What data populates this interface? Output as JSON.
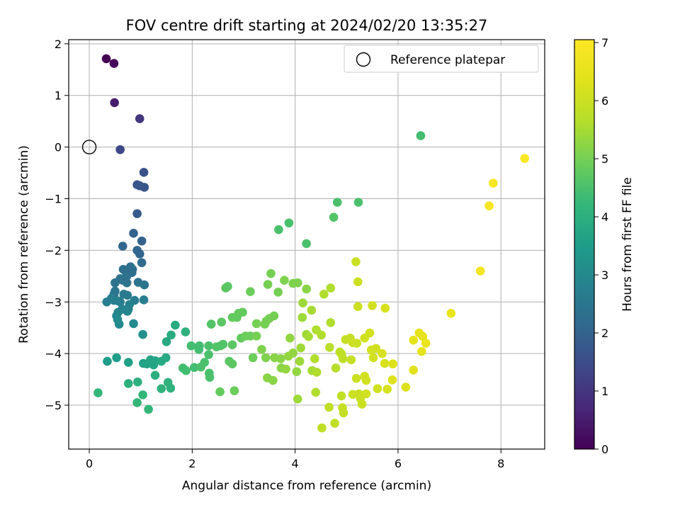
{
  "chart_data": {
    "type": "scatter",
    "title": "FOV centre drift starting at 2024/02/20 13:35:27",
    "xlabel": "Angular distance from reference (arcmin)",
    "ylabel": "Rotation from reference (arcmin)",
    "xlim": [
      -0.4,
      8.85
    ],
    "ylim": [
      -5.85,
      2.08
    ],
    "xticks": [
      0,
      2,
      4,
      6,
      8
    ],
    "yticks": [
      2,
      1,
      0,
      -1,
      -2,
      -3,
      -4,
      -5
    ],
    "xticks_labels": [
      "0",
      "2",
      "4",
      "6",
      "8"
    ],
    "yticks_labels": [
      "2",
      "1",
      "0",
      "−1",
      "−2",
      "−3",
      "−4",
      "−5"
    ],
    "grid": true,
    "legend": {
      "label": "Reference platepar",
      "placement": "top-right"
    },
    "reference_point": {
      "x": 0,
      "y": 0
    },
    "colorbar": {
      "label": "Hours from first FF file",
      "colormap": "viridis",
      "range": [
        0,
        7.05
      ],
      "ticks": [
        0,
        1,
        2,
        3,
        4,
        5,
        6,
        7
      ],
      "ticks_labels": [
        "0",
        "1",
        "2",
        "3",
        "4",
        "5",
        "6",
        "7"
      ]
    },
    "series": [
      {
        "points": [
          [
            0.33,
            1.71,
            0.0
          ],
          [
            0.48,
            1.62,
            0.1
          ],
          [
            0.49,
            0.86,
            0.5
          ],
          [
            0.98,
            0.55,
            1.0
          ],
          [
            0.6,
            -0.05,
            1.4
          ],
          [
            1.06,
            -0.49,
            1.6
          ],
          [
            0.93,
            -0.73,
            1.7
          ],
          [
            0.98,
            -0.75,
            1.7
          ],
          [
            1.07,
            -0.78,
            1.7
          ],
          [
            0.93,
            -1.29,
            1.8
          ],
          [
            0.86,
            -1.67,
            2.0
          ],
          [
            1.02,
            -1.82,
            2.0
          ],
          [
            0.65,
            -1.92,
            2.1
          ],
          [
            0.93,
            -2.0,
            2.1
          ],
          [
            0.98,
            -2.07,
            2.1
          ],
          [
            1.02,
            -2.24,
            2.2
          ],
          [
            0.8,
            -2.32,
            2.3
          ],
          [
            0.66,
            -2.37,
            2.3
          ],
          [
            0.84,
            -2.37,
            2.3
          ],
          [
            0.72,
            -2.43,
            2.3
          ],
          [
            0.83,
            -2.43,
            2.3
          ],
          [
            0.73,
            -2.5,
            2.4
          ],
          [
            0.6,
            -2.55,
            2.4
          ],
          [
            0.65,
            -2.58,
            2.4
          ],
          [
            0.5,
            -2.63,
            2.4
          ],
          [
            0.73,
            -2.63,
            2.4
          ],
          [
            0.95,
            -2.62,
            2.4
          ],
          [
            1.07,
            -2.67,
            2.5
          ],
          [
            0.5,
            -2.79,
            2.5
          ],
          [
            0.48,
            -2.85,
            2.5
          ],
          [
            0.67,
            -2.85,
            2.6
          ],
          [
            0.74,
            -2.87,
            2.6
          ],
          [
            0.43,
            -2.93,
            2.7
          ],
          [
            0.48,
            -2.97,
            2.7
          ],
          [
            0.56,
            -2.98,
            2.7
          ],
          [
            0.88,
            -2.97,
            2.7
          ],
          [
            1.06,
            -2.96,
            2.7
          ],
          [
            0.34,
            -3.0,
            2.7
          ],
          [
            0.6,
            -3.0,
            2.7
          ],
          [
            0.78,
            -3.05,
            2.8
          ],
          [
            0.64,
            -3.14,
            2.8
          ],
          [
            0.76,
            -3.14,
            2.8
          ],
          [
            0.56,
            -3.2,
            2.9
          ],
          [
            0.74,
            -3.18,
            2.9
          ],
          [
            0.53,
            -3.27,
            2.9
          ],
          [
            0.55,
            -3.34,
            3.0
          ],
          [
            0.58,
            -3.43,
            3.0
          ],
          [
            0.86,
            -3.42,
            3.0
          ],
          [
            1.04,
            -3.63,
            3.2
          ],
          [
            0.53,
            -4.08,
            3.5
          ],
          [
            0.35,
            -4.15,
            3.5
          ],
          [
            0.76,
            -4.17,
            3.6
          ],
          [
            1.05,
            -4.19,
            3.6
          ],
          [
            1.19,
            -4.12,
            3.7
          ],
          [
            1.12,
            -4.2,
            3.7
          ],
          [
            1.25,
            -4.22,
            3.7
          ],
          [
            1.28,
            -4.14,
            3.7
          ],
          [
            1.4,
            -4.15,
            3.8
          ],
          [
            1.49,
            -4.08,
            3.8
          ],
          [
            1.5,
            -3.77,
            3.8
          ],
          [
            1.59,
            -3.64,
            3.9
          ],
          [
            1.67,
            -3.45,
            3.9
          ],
          [
            1.87,
            -3.58,
            4.0
          ],
          [
            1.28,
            -4.42,
            4.0
          ],
          [
            0.76,
            -4.58,
            4.0
          ],
          [
            0.94,
            -4.55,
            4.0
          ],
          [
            1.4,
            -4.68,
            4.1
          ],
          [
            1.53,
            -4.56,
            4.1
          ],
          [
            1.58,
            -4.67,
            4.1
          ],
          [
            0.17,
            -4.76,
            4.2
          ],
          [
            1.04,
            -4.8,
            4.2
          ],
          [
            0.93,
            -4.95,
            4.2
          ],
          [
            1.15,
            -5.08,
            4.2
          ],
          [
            1.82,
            -4.28,
            4.4
          ],
          [
            1.88,
            -4.33,
            4.4
          ],
          [
            1.98,
            -3.85,
            4.4
          ],
          [
            2.04,
            -4.27,
            4.4
          ],
          [
            2.14,
            -3.85,
            4.4
          ],
          [
            2.13,
            -3.92,
            4.4
          ],
          [
            2.17,
            -4.26,
            4.5
          ],
          [
            2.24,
            -4.17,
            4.5
          ],
          [
            2.32,
            -3.85,
            4.5
          ],
          [
            2.32,
            -4.02,
            4.5
          ],
          [
            2.33,
            -4.38,
            4.5
          ],
          [
            2.34,
            -4.46,
            4.5
          ],
          [
            2.37,
            -3.43,
            4.6
          ],
          [
            2.47,
            -3.87,
            4.6
          ],
          [
            2.55,
            -3.85,
            4.6
          ],
          [
            2.6,
            -3.82,
            4.6
          ],
          [
            2.57,
            -3.39,
            4.7
          ],
          [
            2.65,
            -2.73,
            4.7
          ],
          [
            2.69,
            -2.7,
            4.7
          ],
          [
            2.72,
            -4.15,
            4.7
          ],
          [
            2.78,
            -4.2,
            4.7
          ],
          [
            2.78,
            -3.83,
            4.7
          ],
          [
            2.78,
            -3.3,
            4.8
          ],
          [
            2.87,
            -3.3,
            4.8
          ],
          [
            2.9,
            -3.22,
            4.8
          ],
          [
            2.98,
            -3.2,
            4.8
          ],
          [
            2.95,
            -3.7,
            4.8
          ],
          [
            3.04,
            -3.66,
            4.9
          ],
          [
            3.13,
            -3.66,
            4.9
          ],
          [
            3.13,
            -2.8,
            4.9
          ],
          [
            3.18,
            -4.08,
            4.9
          ],
          [
            3.25,
            -3.42,
            5.0
          ],
          [
            3.25,
            -3.66,
            5.0
          ],
          [
            3.41,
            -3.43,
            5.0
          ],
          [
            3.44,
            -3.37,
            5.0
          ],
          [
            3.5,
            -3.32,
            5.0
          ],
          [
            3.59,
            -3.27,
            5.0
          ],
          [
            3.47,
            -2.66,
            5.0
          ],
          [
            3.53,
            -2.45,
            5.0
          ],
          [
            3.67,
            -2.81,
            5.0
          ],
          [
            3.79,
            -2.58,
            5.1
          ],
          [
            3.96,
            -2.64,
            5.1
          ],
          [
            4.05,
            -2.63,
            5.1
          ],
          [
            4.22,
            -2.75,
            5.2
          ],
          [
            3.68,
            -1.6,
            4.5
          ],
          [
            3.88,
            -1.47,
            4.5
          ],
          [
            4.22,
            -1.87,
            4.5
          ],
          [
            4.75,
            -1.36,
            4.6
          ],
          [
            4.82,
            -1.07,
            4.5
          ],
          [
            5.23,
            -1.07,
            4.5
          ],
          [
            6.44,
            0.22,
            4.4
          ],
          [
            2.82,
            -4.72,
            4.9
          ],
          [
            2.54,
            -4.74,
            4.8
          ],
          [
            3.35,
            -3.92,
            5.1
          ],
          [
            3.43,
            -4.08,
            5.1
          ],
          [
            3.46,
            -4.47,
            5.2
          ],
          [
            3.57,
            -4.52,
            5.2
          ],
          [
            3.6,
            -4.08,
            5.2
          ],
          [
            3.72,
            -4.1,
            5.2
          ],
          [
            3.73,
            -4.28,
            5.2
          ],
          [
            3.82,
            -4.3,
            5.3
          ],
          [
            3.87,
            -4.05,
            5.3
          ],
          [
            3.9,
            -3.7,
            5.3
          ],
          [
            3.96,
            -3.99,
            5.3
          ],
          [
            4.03,
            -4.35,
            5.3
          ],
          [
            4.05,
            -4.88,
            5.4
          ],
          [
            4.09,
            -4.15,
            5.4
          ],
          [
            4.11,
            -3.89,
            5.4
          ],
          [
            4.14,
            -3.3,
            5.4
          ],
          [
            4.15,
            -3.02,
            5.4
          ],
          [
            4.22,
            -3.63,
            5.4
          ],
          [
            4.26,
            -3.67,
            5.5
          ],
          [
            4.32,
            -3.16,
            5.5
          ],
          [
            4.33,
            -4.33,
            5.5
          ],
          [
            4.41,
            -3.54,
            5.6
          ],
          [
            4.38,
            -4.1,
            5.6
          ],
          [
            4.42,
            -4.36,
            5.6
          ],
          [
            4.4,
            -4.75,
            5.6
          ],
          [
            4.51,
            -3.64,
            5.6
          ],
          [
            4.56,
            -2.85,
            5.6
          ],
          [
            4.69,
            -2.73,
            5.6
          ],
          [
            4.69,
            -3.4,
            5.6
          ],
          [
            4.67,
            -3.88,
            5.7
          ],
          [
            4.79,
            -4.28,
            5.7
          ],
          [
            4.66,
            -5.04,
            5.8
          ],
          [
            4.52,
            -5.44,
            5.8
          ],
          [
            4.77,
            -5.35,
            5.8
          ],
          [
            4.87,
            -3.97,
            5.8
          ],
          [
            4.9,
            -4.01,
            5.8
          ],
          [
            4.93,
            -4.1,
            5.8
          ],
          [
            4.9,
            -4.82,
            5.8
          ],
          [
            4.92,
            -5.05,
            5.9
          ],
          [
            4.94,
            -5.15,
            5.9
          ],
          [
            4.98,
            -3.73,
            5.9
          ],
          [
            5.07,
            -3.7,
            5.9
          ],
          [
            5.09,
            -4.12,
            5.9
          ],
          [
            5.12,
            -3.79,
            6.0
          ],
          [
            5.12,
            -4.79,
            6.0
          ],
          [
            5.18,
            -2.22,
            6.0
          ],
          [
            5.22,
            -2.61,
            6.0
          ],
          [
            5.22,
            -3.09,
            6.0
          ],
          [
            5.2,
            -3.8,
            6.0
          ],
          [
            5.19,
            -4.48,
            6.0
          ],
          [
            5.24,
            -4.78,
            6.0
          ],
          [
            5.27,
            -4.87,
            6.0
          ],
          [
            5.3,
            -4.98,
            6.0
          ],
          [
            5.35,
            -3.7,
            6.1
          ],
          [
            5.35,
            -4.44,
            6.1
          ],
          [
            5.38,
            -4.52,
            6.1
          ],
          [
            5.38,
            -4.78,
            6.1
          ],
          [
            5.45,
            -3.6,
            6.1
          ],
          [
            5.48,
            -3.93,
            6.1
          ],
          [
            5.5,
            -3.07,
            6.1
          ],
          [
            5.52,
            -4.08,
            6.1
          ],
          [
            5.57,
            -3.9,
            6.1
          ],
          [
            5.6,
            -4.68,
            6.1
          ],
          [
            5.69,
            -4.0,
            6.2
          ],
          [
            5.74,
            -4.19,
            6.2
          ],
          [
            5.75,
            -3.12,
            6.2
          ],
          [
            5.79,
            -4.69,
            6.2
          ],
          [
            5.9,
            -4.2,
            6.3
          ],
          [
            5.89,
            -4.51,
            6.3
          ],
          [
            6.15,
            -4.65,
            6.3
          ],
          [
            6.3,
            -4.32,
            6.4
          ],
          [
            6.3,
            -3.74,
            6.5
          ],
          [
            6.41,
            -3.6,
            6.5
          ],
          [
            6.48,
            -3.67,
            6.5
          ],
          [
            6.46,
            -3.96,
            6.5
          ],
          [
            6.54,
            -3.8,
            6.6
          ],
          [
            7.03,
            -3.22,
            6.6
          ],
          [
            7.6,
            -2.4,
            6.8
          ],
          [
            7.77,
            -1.14,
            6.9
          ],
          [
            7.85,
            -0.7,
            6.9
          ],
          [
            8.46,
            -0.22,
            7.0
          ]
        ]
      }
    ]
  }
}
